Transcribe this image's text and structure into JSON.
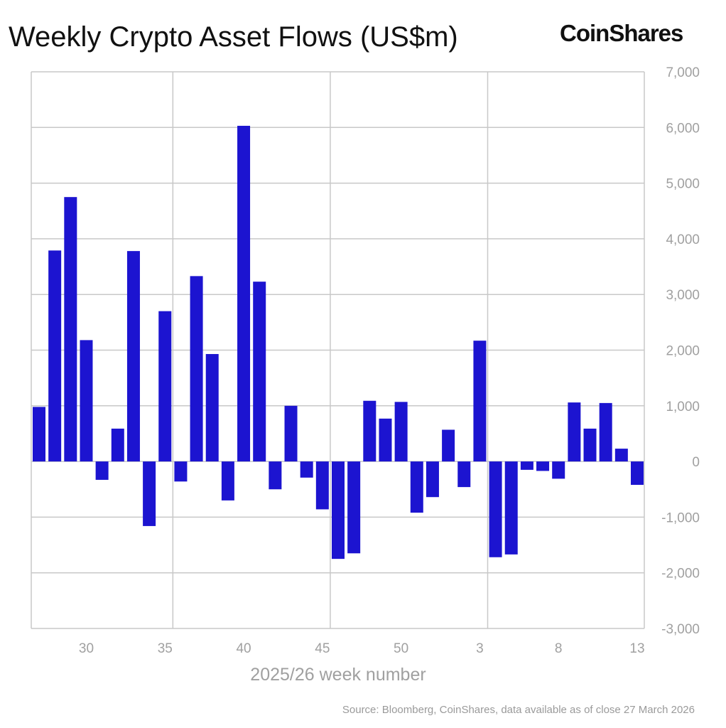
{
  "header": {
    "title": "Weekly Crypto Asset Flows (US$m)",
    "logo": "CoinShares"
  },
  "footer": {
    "source": "Source: Bloomberg, CoinShares, data available as of close 27 March 2026"
  },
  "colors": {
    "bar": "#1c14d0",
    "grid": "#c8c8c8",
    "tick_text": "#a0a0a0"
  },
  "chart_data": {
    "type": "bar",
    "title": "Weekly Crypto Asset Flows (US$m)",
    "xlabel": "2025/26 week number",
    "ylabel": "",
    "ylim": [
      -3000,
      7000
    ],
    "yticks": [
      7000,
      6000,
      5000,
      4000,
      3000,
      2000,
      1000,
      0,
      -1000,
      -2000,
      -3000
    ],
    "ytick_labels": [
      "7,000",
      "6,000",
      "5,000",
      "4,000",
      "3,000",
      "2,000",
      "1,000",
      "0",
      "-1,000",
      "-2,000",
      "-3,000"
    ],
    "xtick_labels": [
      "30",
      "35",
      "40",
      "45",
      "50",
      "3",
      "8",
      "13"
    ],
    "grid": true,
    "y_axis_position": "right",
    "categories": [
      "27",
      "28",
      "29",
      "30",
      "31",
      "32",
      "33",
      "34",
      "35",
      "36",
      "37",
      "38",
      "39",
      "40",
      "41",
      "42",
      "43",
      "44",
      "45",
      "46",
      "47",
      "48",
      "49",
      "50",
      "51",
      "52",
      "1",
      "2",
      "3",
      "4",
      "5",
      "6",
      "7",
      "8",
      "9",
      "10",
      "11",
      "12",
      "13"
    ],
    "values": [
      980,
      3790,
      4750,
      2180,
      -330,
      590,
      3780,
      -1160,
      2700,
      -360,
      3330,
      1930,
      -700,
      6030,
      3230,
      -500,
      1000,
      -290,
      -860,
      -1750,
      -1650,
      1090,
      770,
      1070,
      -920,
      -640,
      570,
      -460,
      2170,
      -1720,
      -1670,
      -150,
      -170,
      -310,
      1060,
      590,
      1050,
      230,
      -420
    ]
  }
}
